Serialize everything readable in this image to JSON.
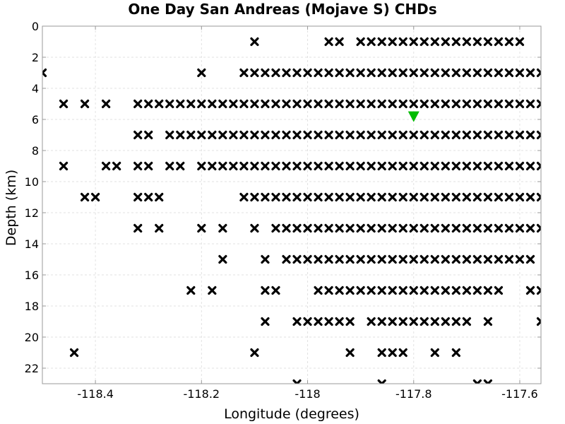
{
  "chart_data": {
    "type": "scatter",
    "title": "One Day San Andreas (Mojave S) CHDs",
    "xlabel": "Longitude (degrees)",
    "ylabel": "Depth (km)",
    "xlim": [
      -118.5,
      -117.56
    ],
    "ylim": [
      0,
      23
    ],
    "y_inverted": true,
    "grid": true,
    "x_ticks": [
      -118.4,
      -118.2,
      -118.0,
      -117.8,
      -117.6
    ],
    "x_tick_labels": [
      "-118.4",
      "-118.2",
      "-118",
      "-117.8",
      "-117.6"
    ],
    "y_ticks": [
      0,
      2,
      4,
      6,
      8,
      10,
      12,
      14,
      16,
      18,
      20,
      22
    ],
    "y_tick_labels": [
      "0",
      "2",
      "4",
      "6",
      "8",
      "10",
      "12",
      "14",
      "16",
      "18",
      "20",
      "22"
    ],
    "series": [
      {
        "marker": "x",
        "color": "#000000",
        "rows": [
          {
            "depth": 1,
            "lons": [
              -118.1,
              -117.96,
              -117.94,
              -117.9,
              -117.88,
              -117.86,
              -117.84,
              -117.82,
              -117.8,
              -117.78,
              -117.76,
              -117.74,
              -117.72,
              -117.7,
              -117.68,
              -117.66,
              -117.64,
              -117.62,
              -117.6
            ]
          },
          {
            "depth": 3,
            "lons": [
              -118.5,
              -118.2,
              -118.12,
              -118.1,
              -118.08,
              -118.06,
              -118.04,
              -118.02,
              -118.0,
              -117.98,
              -117.96,
              -117.94,
              -117.92,
              -117.9,
              -117.88,
              -117.86,
              -117.84,
              -117.82,
              -117.8,
              -117.78,
              -117.76,
              -117.74,
              -117.72,
              -117.7,
              -117.68,
              -117.66,
              -117.64,
              -117.62,
              -117.6,
              -117.58,
              -117.56
            ]
          },
          {
            "depth": 5,
            "lons": [
              -118.46,
              -118.42,
              -118.38,
              -118.32,
              -118.3,
              -118.28,
              -118.26,
              -118.24,
              -118.22,
              -118.2,
              -118.18,
              -118.16,
              -118.14,
              -118.12,
              -118.1,
              -118.08,
              -118.06,
              -118.04,
              -118.02,
              -118.0,
              -117.98,
              -117.96,
              -117.94,
              -117.92,
              -117.9,
              -117.88,
              -117.86,
              -117.84,
              -117.82,
              -117.8,
              -117.78,
              -117.76,
              -117.74,
              -117.72,
              -117.7,
              -117.68,
              -117.66,
              -117.64,
              -117.62,
              -117.6,
              -117.58,
              -117.56
            ]
          },
          {
            "depth": 7,
            "lons": [
              -118.32,
              -118.3,
              -118.26,
              -118.24,
              -118.22,
              -118.2,
              -118.18,
              -118.16,
              -118.14,
              -118.12,
              -118.1,
              -118.08,
              -118.06,
              -118.04,
              -118.02,
              -118.0,
              -117.98,
              -117.96,
              -117.94,
              -117.92,
              -117.9,
              -117.88,
              -117.86,
              -117.84,
              -117.82,
              -117.8,
              -117.78,
              -117.76,
              -117.74,
              -117.72,
              -117.7,
              -117.68,
              -117.66,
              -117.64,
              -117.62,
              -117.6,
              -117.58,
              -117.56
            ]
          },
          {
            "depth": 9,
            "lons": [
              -118.46,
              -118.38,
              -118.36,
              -118.32,
              -118.3,
              -118.26,
              -118.24,
              -118.2,
              -118.18,
              -118.16,
              -118.14,
              -118.12,
              -118.1,
              -118.08,
              -118.06,
              -118.04,
              -118.02,
              -118.0,
              -117.98,
              -117.96,
              -117.94,
              -117.92,
              -117.9,
              -117.88,
              -117.86,
              -117.84,
              -117.82,
              -117.8,
              -117.78,
              -117.76,
              -117.74,
              -117.72,
              -117.7,
              -117.68,
              -117.66,
              -117.64,
              -117.62,
              -117.6,
              -117.58,
              -117.56
            ]
          },
          {
            "depth": 11,
            "lons": [
              -118.42,
              -118.4,
              -118.32,
              -118.3,
              -118.28,
              -118.12,
              -118.1,
              -118.08,
              -118.06,
              -118.04,
              -118.02,
              -118.0,
              -117.98,
              -117.96,
              -117.94,
              -117.92,
              -117.9,
              -117.88,
              -117.86,
              -117.84,
              -117.82,
              -117.8,
              -117.78,
              -117.76,
              -117.74,
              -117.72,
              -117.7,
              -117.68,
              -117.66,
              -117.64,
              -117.62,
              -117.6,
              -117.58,
              -117.56
            ]
          },
          {
            "depth": 13,
            "lons": [
              -118.32,
              -118.28,
              -118.2,
              -118.16,
              -118.1,
              -118.06,
              -118.04,
              -118.02,
              -118.0,
              -117.98,
              -117.96,
              -117.94,
              -117.92,
              -117.9,
              -117.88,
              -117.86,
              -117.84,
              -117.82,
              -117.8,
              -117.78,
              -117.76,
              -117.74,
              -117.72,
              -117.7,
              -117.68,
              -117.66,
              -117.64,
              -117.62,
              -117.6,
              -117.58,
              -117.56
            ]
          },
          {
            "depth": 15,
            "lons": [
              -118.16,
              -118.08,
              -118.04,
              -118.02,
              -118.0,
              -117.98,
              -117.96,
              -117.94,
              -117.92,
              -117.9,
              -117.88,
              -117.86,
              -117.84,
              -117.82,
              -117.8,
              -117.78,
              -117.76,
              -117.74,
              -117.72,
              -117.7,
              -117.68,
              -117.66,
              -117.64,
              -117.62,
              -117.6,
              -117.58
            ]
          },
          {
            "depth": 17,
            "lons": [
              -118.22,
              -118.18,
              -118.08,
              -118.06,
              -117.98,
              -117.96,
              -117.94,
              -117.92,
              -117.9,
              -117.88,
              -117.86,
              -117.84,
              -117.82,
              -117.8,
              -117.78,
              -117.76,
              -117.74,
              -117.72,
              -117.7,
              -117.68,
              -117.66,
              -117.64,
              -117.58,
              -117.56
            ]
          },
          {
            "depth": 19,
            "lons": [
              -118.08,
              -118.02,
              -118.0,
              -117.98,
              -117.96,
              -117.94,
              -117.92,
              -117.88,
              -117.86,
              -117.84,
              -117.82,
              -117.8,
              -117.78,
              -117.76,
              -117.74,
              -117.72,
              -117.7,
              -117.66,
              -117.56
            ]
          },
          {
            "depth": 21,
            "lons": [
              -118.44,
              -118.1,
              -117.92,
              -117.86,
              -117.84,
              -117.82,
              -117.76,
              -117.72
            ]
          },
          {
            "depth": 23,
            "lons": [
              -118.02,
              -117.86,
              -117.68,
              -117.66
            ]
          }
        ]
      },
      {
        "marker": "triangle-down",
        "color": "#00bb00",
        "points": [
          {
            "x": -117.8,
            "y": 5.8
          }
        ]
      }
    ]
  }
}
